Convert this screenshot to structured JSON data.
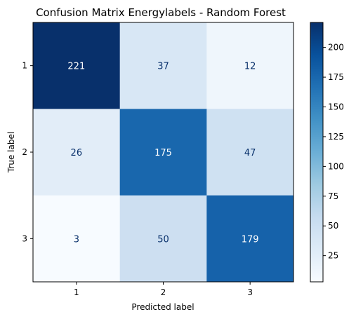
{
  "chart_data": {
    "type": "heatmap",
    "title": "Confusion Matrix Energylabels - Random Forest",
    "xlabel": "Predicted label",
    "ylabel": "True label",
    "x_categories": [
      "1",
      "2",
      "3"
    ],
    "y_categories": [
      "1",
      "2",
      "3"
    ],
    "matrix": [
      [
        221,
        37,
        12
      ],
      [
        26,
        175,
        47
      ],
      [
        3,
        50,
        179
      ]
    ],
    "colormap": "Blues",
    "colorbar": {
      "min": 3,
      "max": 221,
      "ticks": [
        25,
        50,
        75,
        100,
        125,
        150,
        175,
        200
      ]
    },
    "text_colors": {
      "light": "#ffffff",
      "dark": "#08306b"
    }
  }
}
